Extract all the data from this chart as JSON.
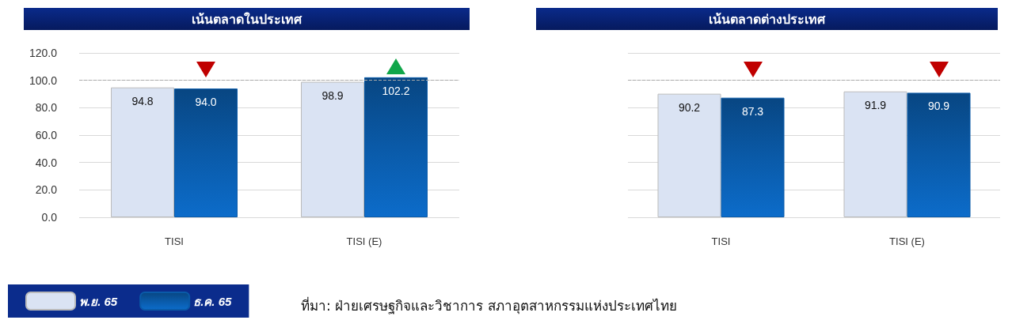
{
  "chart_data": [
    {
      "type": "bar",
      "title": "เน้นตลาดในประเทศ",
      "categories": [
        "TISI",
        "TISI (E)"
      ],
      "series": [
        {
          "name": "พ.ย. 65",
          "color": "#dae3f3",
          "values": [
            94.8,
            98.9
          ],
          "value_labels": [
            "94.8",
            "98.9"
          ]
        },
        {
          "name": "ธ.ค. 65",
          "color": "#0a5aa8",
          "values": [
            94.0,
            102.2
          ],
          "value_labels": [
            "94.0",
            "102.2"
          ]
        }
      ],
      "ylim": [
        0,
        120
      ],
      "yticks": [
        {
          "value": 0,
          "label": "0.0"
        },
        {
          "value": 20,
          "label": "20.0"
        },
        {
          "value": 40,
          "label": "40.0"
        },
        {
          "value": 60,
          "label": "60.0"
        },
        {
          "value": 80,
          "label": "80.0"
        },
        {
          "value": 100,
          "label": "100.0"
        },
        {
          "value": 120,
          "label": "120.0"
        }
      ],
      "grid": "y",
      "legend": "bottom left",
      "ref_lines": [
        {
          "axis": "y",
          "value": 100,
          "label": null,
          "color": "#aaaaaa",
          "line_style": "dashed"
        }
      ],
      "annotations": [
        "ที่มา: ฝ่ายเศรษฐกิจและวิชาการ สภาอุตสาหกรรมแห่งประเทศไทย"
      ]
    },
    {
      "type": "bar",
      "title": "เน้นตลาดต่างประเทศ",
      "categories": [
        "TISI",
        "TISI (E)"
      ],
      "series": [
        {
          "color": "#dae3f3",
          "values": [
            90.2,
            91.9
          ],
          "value_labels": [
            "90.2",
            "91.9"
          ]
        },
        {
          "color": "#0a5aa8",
          "values": [
            87.3,
            90.9
          ],
          "value_labels": [
            "87.3",
            "90.9"
          ]
        }
      ],
      "ylim": [
        0,
        120
      ],
      "yticks": [
        0,
        20,
        40,
        60,
        80,
        100,
        120
      ],
      "tick_labels": "x",
      "grid": "y",
      "ref_lines": [
        {
          "axis": "y",
          "value": 100,
          "label": null,
          "color": "#aaaaaa",
          "line_style": "dashed"
        }
      ]
    }
  ]
}
